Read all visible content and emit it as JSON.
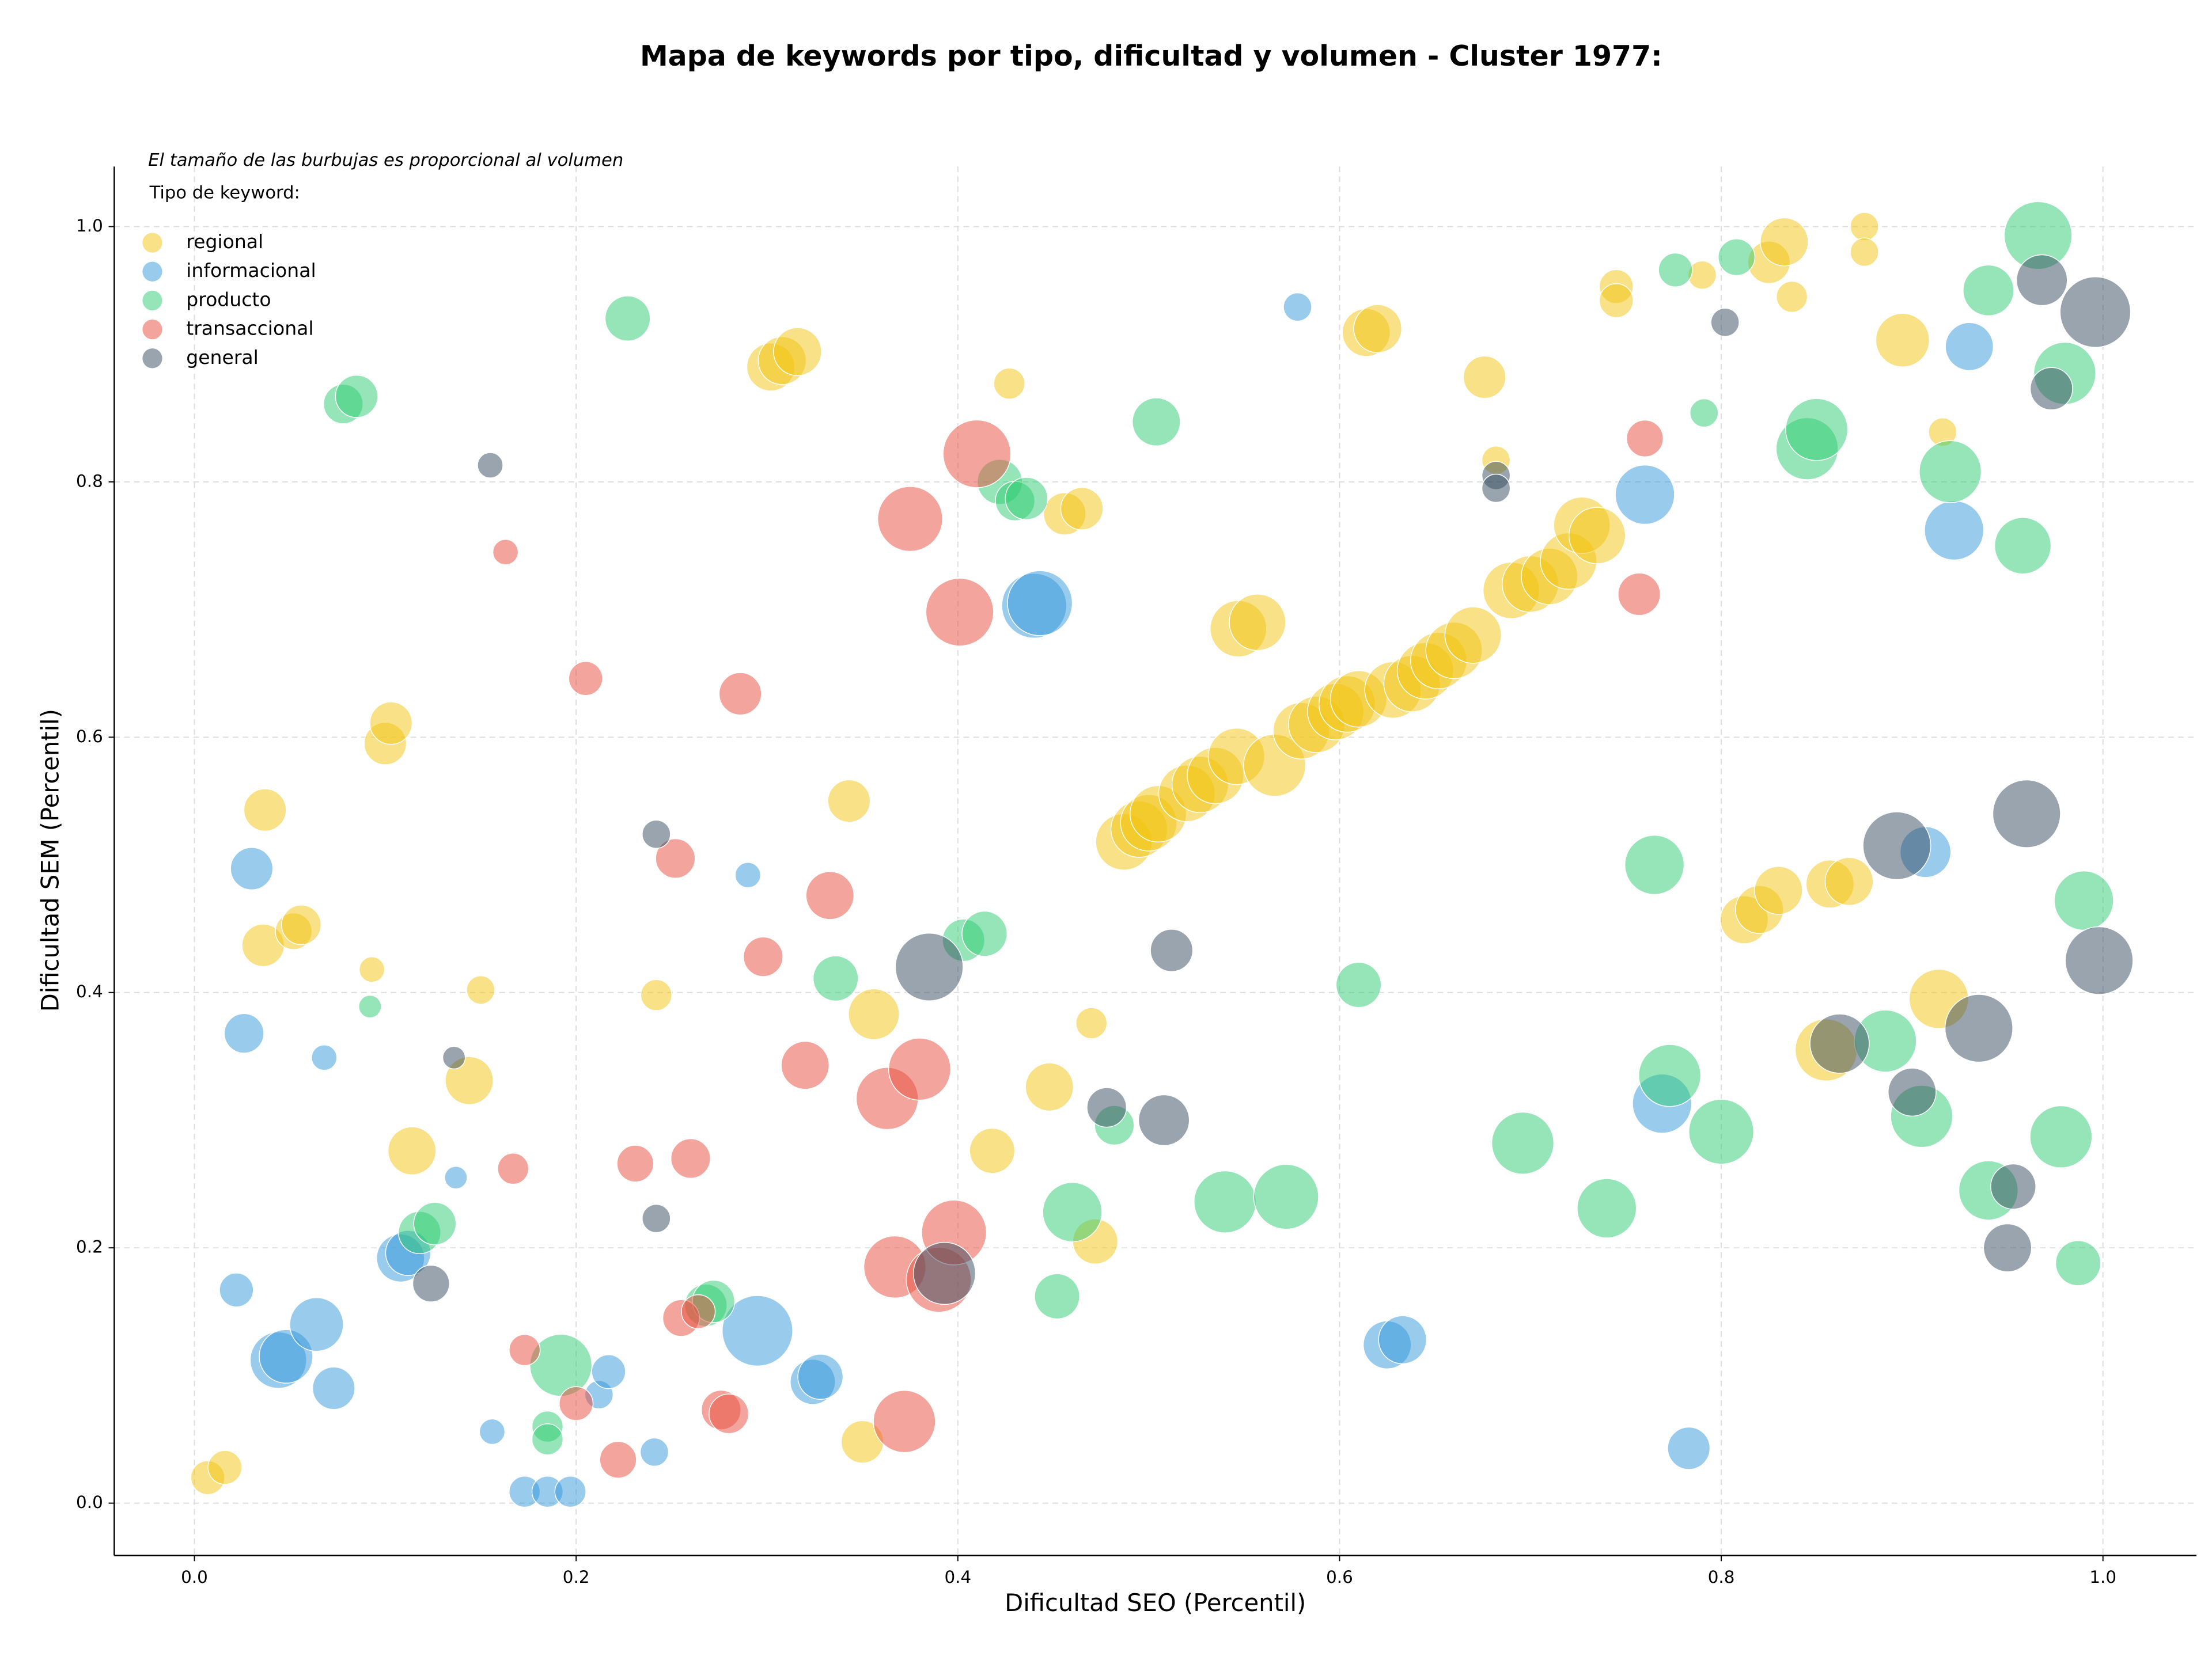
{
  "chart_data": {
    "type": "scatter",
    "title": "Mapa de keywords por tipo, dificultad y volumen - Cluster 1977:",
    "annotation": "El tamaño de las burbujas es proporcional al volumen",
    "legend_title": "Tipo de keyword:",
    "xlabel": "Dificultad SEO (Percentil)",
    "ylabel": "Dificultad SEM (Percentil)",
    "xlim": [
      -0.042,
      1.049
    ],
    "ylim": [
      -0.041,
      1.047
    ],
    "xticks": [
      {
        "value": 0,
        "label": "0.0"
      },
      0.2,
      0.4,
      0.6,
      0.8,
      {
        "value": 1,
        "label": "1.0"
      }
    ],
    "yticks": [
      {
        "value": 0,
        "label": "0.0"
      },
      0.2,
      0.4,
      0.6,
      0.8,
      {
        "value": 1,
        "label": "1.0"
      }
    ],
    "grid": true,
    "legend": "upper left",
    "series": [
      {
        "name": "regional",
        "color": "#f1c40f",
        "x": [
          0.007,
          0.016,
          0.037,
          0.036,
          0.052,
          0.056,
          0.093,
          0.1,
          0.103,
          0.114,
          0.144,
          0.15,
          0.242,
          0.302,
          0.308,
          0.316,
          0.343,
          0.356,
          0.35,
          0.418,
          0.448,
          0.47,
          0.472,
          0.427,
          0.456,
          0.465,
          0.487,
          0.495,
          0.5,
          0.505,
          0.52,
          0.527,
          0.535,
          0.546,
          0.566,
          0.58,
          0.588,
          0.598,
          0.604,
          0.61,
          0.628,
          0.638,
          0.645,
          0.652,
          0.66,
          0.67,
          0.69,
          0.7,
          0.71,
          0.72,
          0.727,
          0.735,
          0.547,
          0.557,
          0.614,
          0.62,
          0.676,
          0.682,
          0.745,
          0.745,
          0.79,
          0.825,
          0.833,
          0.837,
          0.875,
          0.875,
          0.895,
          0.916,
          0.812,
          0.82,
          0.83,
          0.857,
          0.867,
          0.855,
          0.914
        ],
        "y": [
          0.02,
          0.028,
          0.543,
          0.437,
          0.448,
          0.453,
          0.418,
          0.595,
          0.611,
          0.276,
          0.331,
          0.402,
          0.398,
          0.89,
          0.895,
          0.902,
          0.55,
          0.383,
          0.048,
          0.276,
          0.326,
          0.376,
          0.205,
          0.877,
          0.775,
          0.779,
          0.518,
          0.528,
          0.533,
          0.54,
          0.556,
          0.563,
          0.57,
          0.585,
          0.578,
          0.605,
          0.61,
          0.62,
          0.626,
          0.63,
          0.637,
          0.642,
          0.652,
          0.66,
          0.668,
          0.68,
          0.715,
          0.72,
          0.726,
          0.738,
          0.766,
          0.758,
          0.685,
          0.69,
          0.917,
          0.92,
          0.882,
          0.817,
          0.953,
          0.942,
          0.962,
          0.972,
          0.988,
          0.945,
          1.0,
          0.98,
          0.911,
          0.839,
          0.457,
          0.465,
          0.48,
          0.485,
          0.487,
          0.355,
          0.395
        ],
        "sizes": [
          144,
          144,
          225,
          225,
          169,
          196,
          81,
          225,
          225,
          289,
          289,
          100,
          121,
          289,
          289,
          289,
          225,
          324,
          225,
          256,
          289,
          121,
          256,
          121,
          225,
          225,
          400,
          400,
          400,
          400,
          400,
          400,
          400,
          400,
          484,
          400,
          400,
          400,
          400,
          400,
          400,
          400,
          400,
          400,
          400,
          400,
          400,
          400,
          400,
          400,
          400,
          400,
          400,
          400,
          289,
          289,
          225,
          100,
          144,
          144,
          100,
          225,
          289,
          121,
          100,
          100,
          361,
          100,
          289,
          289,
          289,
          289,
          289,
          484,
          441
        ]
      },
      {
        "name": "informacional",
        "color": "#3498db",
        "x": [
          0.022,
          0.03,
          0.026,
          0.068,
          0.044,
          0.048,
          0.064,
          0.073,
          0.108,
          0.112,
          0.137,
          0.156,
          0.173,
          0.185,
          0.197,
          0.212,
          0.217,
          0.241,
          0.29,
          0.295,
          0.324,
          0.328,
          0.44,
          0.443,
          0.578,
          0.625,
          0.633,
          0.76,
          0.769,
          0.783,
          0.922,
          0.93,
          0.907
        ],
        "y": [
          0.167,
          0.497,
          0.368,
          0.349,
          0.112,
          0.115,
          0.14,
          0.09,
          0.192,
          0.196,
          0.255,
          0.056,
          0.009,
          0.009,
          0.009,
          0.085,
          0.103,
          0.04,
          0.492,
          0.135,
          0.095,
          0.099,
          0.703,
          0.705,
          0.937,
          0.124,
          0.128,
          0.79,
          0.313,
          0.043,
          0.762,
          0.906,
          0.51
        ],
        "sizes": [
          144,
          225,
          196,
          81,
          400,
          361,
          361,
          225,
          289,
          256,
          64,
          81,
          121,
          121,
          121,
          100,
          144,
          100,
          81,
          625,
          256,
          256,
          529,
          529,
          100,
          289,
          289,
          441,
          441,
          225,
          441,
          289,
          324
        ]
      },
      {
        "name": "producto",
        "color": "#2ecc71",
        "x": [
          0.078,
          0.085,
          0.092,
          0.118,
          0.126,
          0.185,
          0.185,
          0.192,
          0.227,
          0.268,
          0.272,
          0.336,
          0.403,
          0.414,
          0.422,
          0.43,
          0.436,
          0.46,
          0.452,
          0.482,
          0.504,
          0.54,
          0.572,
          0.61,
          0.696,
          0.74,
          0.765,
          0.773,
          0.8,
          0.776,
          0.791,
          0.808,
          0.845,
          0.85,
          0.886,
          0.905,
          0.92,
          0.94,
          0.958,
          0.966,
          0.98,
          0.99,
          0.978,
          0.987,
          0.94
        ],
        "y": [
          0.861,
          0.867,
          0.389,
          0.212,
          0.219,
          0.06,
          0.05,
          0.108,
          0.928,
          0.155,
          0.158,
          0.411,
          0.441,
          0.446,
          0.8,
          0.785,
          0.787,
          0.228,
          0.162,
          0.296,
          0.847,
          0.236,
          0.24,
          0.406,
          0.282,
          0.231,
          0.5,
          0.335,
          0.291,
          0.966,
          0.854,
          0.976,
          0.826,
          0.841,
          0.362,
          0.303,
          0.808,
          0.95,
          0.75,
          0.993,
          0.885,
          0.472,
          0.287,
          0.188,
          0.245
        ],
        "sizes": [
          196,
          225,
          64,
          225,
          225,
          121,
          121,
          484,
          256,
          225,
          225,
          256,
          225,
          256,
          256,
          196,
          225,
          441,
          256,
          196,
          289,
          484,
          529,
          256,
          484,
          441,
          441,
          484,
          529,
          144,
          100,
          169,
          484,
          484,
          484,
          484,
          484,
          324,
          400,
          576,
          484,
          441,
          484,
          256,
          441
        ]
      },
      {
        "name": "transaccional",
        "color": "#e74c3c",
        "x": [
          0.163,
          0.173,
          0.167,
          0.2,
          0.205,
          0.222,
          0.231,
          0.252,
          0.255,
          0.26,
          0.264,
          0.276,
          0.28,
          0.286,
          0.298,
          0.32,
          0.333,
          0.363,
          0.367,
          0.372,
          0.38,
          0.375,
          0.39,
          0.398,
          0.401,
          0.41,
          0.76,
          0.757
        ],
        "y": [
          0.745,
          0.12,
          0.262,
          0.078,
          0.646,
          0.034,
          0.266,
          0.505,
          0.145,
          0.27,
          0.15,
          0.073,
          0.07,
          0.634,
          0.428,
          0.343,
          0.476,
          0.317,
          0.185,
          0.064,
          0.34,
          0.771,
          0.175,
          0.212,
          0.698,
          0.822,
          0.834,
          0.712
        ],
        "sizes": [
          81,
          121,
          121,
          144,
          144,
          169,
          169,
          196,
          169,
          196,
          144,
          196,
          196,
          225,
          196,
          289,
          289,
          484,
          484,
          484,
          484,
          529,
          529,
          529,
          576,
          576,
          169,
          225
        ]
      },
      {
        "name": "general",
        "color": "#34495e",
        "x": [
          0.124,
          0.136,
          0.155,
          0.242,
          0.242,
          0.385,
          0.393,
          0.478,
          0.508,
          0.512,
          0.682,
          0.682,
          0.802,
          0.862,
          0.892,
          0.9,
          0.935,
          0.95,
          0.953,
          0.96,
          0.968,
          0.973,
          0.996,
          0.998
        ],
        "y": [
          0.172,
          0.349,
          0.813,
          0.524,
          0.223,
          0.42,
          0.18,
          0.31,
          0.3,
          0.433,
          0.805,
          0.795,
          0.925,
          0.36,
          0.515,
          0.322,
          0.372,
          0.2,
          0.248,
          0.54,
          0.958,
          0.873,
          0.933,
          0.425
        ],
        "sizes": [
          169,
          64,
          81,
          100,
          100,
          576,
          484,
          196,
          324,
          225,
          100,
          100,
          100,
          441,
          576,
          289,
          576,
          289,
          256,
          576,
          324,
          225,
          625,
          576
        ]
      }
    ]
  }
}
